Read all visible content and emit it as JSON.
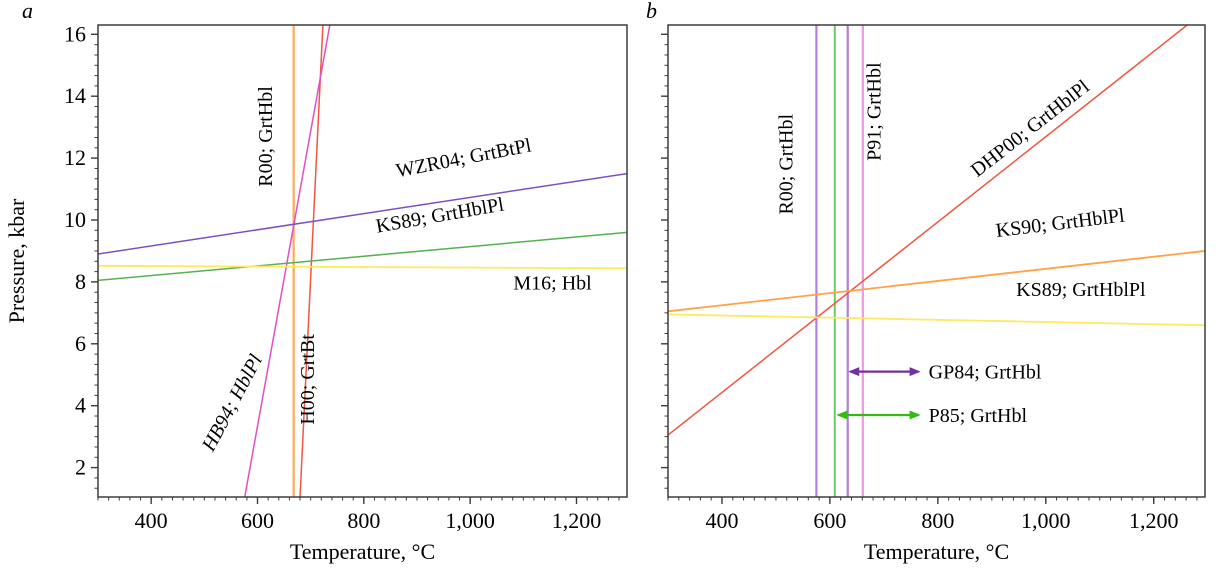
{
  "figure_title": "",
  "chart_data": [
    {
      "type": "line",
      "panel_label": "a",
      "xlabel": "Temperature, °C",
      "ylabel": "Pressure, kbar",
      "xlim": [
        300,
        1295
      ],
      "ylim": [
        1.05,
        16.3
      ],
      "xticks": [
        400,
        600,
        800,
        1000,
        1200
      ],
      "xtick_labels": [
        "400",
        "600",
        "800",
        "1,000",
        "1,200"
      ],
      "x_minor_step": 20,
      "yticks": [
        2,
        4,
        6,
        8,
        10,
        12,
        14,
        16
      ],
      "ytick_labels": [
        "2",
        "4",
        "6",
        "8",
        "10",
        "12",
        "14",
        "16"
      ],
      "y_minor_step": 0.3333,
      "show_y_tick_labels": true,
      "show_ylabel": true,
      "series": [
        {
          "name": "R00; GrtHbl",
          "color": "#ffaa55",
          "width": 2.2,
          "points": [
            [
              668,
              1.05
            ],
            [
              668,
              16.3
            ]
          ]
        },
        {
          "name": "H00; GrtBt",
          "color": "#f25540",
          "width": 1.5,
          "points": [
            [
              680,
              1.05
            ],
            [
              723,
              16.3
            ]
          ]
        },
        {
          "name": "HB94; HblPl",
          "color": "#e34fc3",
          "width": 1.5,
          "points": [
            [
              576,
              1.05
            ],
            [
              736,
              16.3
            ]
          ]
        },
        {
          "name": "WZR04; GrtBtPl",
          "color": "#7c4fc4",
          "width": 1.5,
          "points": [
            [
              300,
              8.9
            ],
            [
              1295,
              11.5
            ]
          ]
        },
        {
          "name": "KS89; GrtHblPl",
          "color": "#53b253",
          "width": 1.5,
          "points": [
            [
              300,
              8.05
            ],
            [
              1295,
              9.6
            ]
          ]
        },
        {
          "name": "M16; Hbl",
          "color": "#ffe95c",
          "width": 1.8,
          "points": [
            [
              300,
              8.52
            ],
            [
              1295,
              8.44
            ]
          ]
        }
      ],
      "line_labels": [
        {
          "text": "R00; GrtHbl",
          "x": 627,
          "y": 12.7,
          "rotate": -90,
          "italic": false
        },
        {
          "text": "WZR04; GrtBtPl",
          "x": 990,
          "y": 11.8,
          "rotate": -11,
          "italic": false
        },
        {
          "text": "KS89; GrtHblPl",
          "x": 945,
          "y": 9.95,
          "rotate": -10,
          "italic": false
        },
        {
          "text": "M16; Hbl",
          "x": 1155,
          "y": 7.75,
          "rotate": 0,
          "italic": false
        },
        {
          "text": "HB94; HblPl",
          "x": 563,
          "y": 4.0,
          "rotate": -62,
          "italic": true
        },
        {
          "text": "H00; GrtBt",
          "x": 706,
          "y": 4.85,
          "rotate": -90,
          "italic": false
        }
      ],
      "range_arrows": []
    },
    {
      "type": "line",
      "panel_label": "b",
      "xlabel": "Temperature, °C",
      "ylabel": "Pressure, kbar",
      "xlim": [
        300,
        1295
      ],
      "ylim": [
        1.05,
        16.3
      ],
      "xticks": [
        400,
        600,
        800,
        1000,
        1200
      ],
      "xtick_labels": [
        "400",
        "600",
        "800",
        "1,000",
        "1,200"
      ],
      "x_minor_step": 20,
      "yticks": [
        2,
        4,
        6,
        8,
        10,
        12,
        14,
        16
      ],
      "ytick_labels": [
        "2",
        "4",
        "6",
        "8",
        "10",
        "12",
        "14",
        "16"
      ],
      "y_minor_step": 0.3333,
      "show_y_tick_labels": false,
      "show_ylabel": false,
      "series": [
        {
          "name": "R00; GrtHbl",
          "color": "#b07fd9",
          "width": 2.2,
          "points": [
            [
              575,
              1.05
            ],
            [
              575,
              16.3
            ]
          ]
        },
        {
          "name": "P85; GrtHbl",
          "color": "#66cc66",
          "width": 2.0,
          "points": [
            [
              609,
              1.05
            ],
            [
              609,
              16.3
            ]
          ]
        },
        {
          "name": "GP84; GrtHbl",
          "color": "#b07fd9",
          "width": 2.2,
          "points": [
            [
              633,
              1.05
            ],
            [
              633,
              16.3
            ]
          ]
        },
        {
          "name": "P91; GrtHbl",
          "color": "#ee99dd",
          "width": 2.2,
          "points": [
            [
              661,
              1.05
            ],
            [
              661,
              16.3
            ]
          ]
        },
        {
          "name": "DHP00; GrtHblPl",
          "color": "#f25540",
          "width": 1.5,
          "points": [
            [
              300,
              3.05
            ],
            [
              1262,
              16.3
            ]
          ]
        },
        {
          "name": "KS90; GrtHblPl",
          "color": "#ffa347",
          "width": 1.8,
          "points": [
            [
              300,
              7.05
            ],
            [
              1295,
              9.0
            ]
          ]
        },
        {
          "name": "KS89; GrtHblPl",
          "color": "#ffe95c",
          "width": 1.8,
          "points": [
            [
              300,
              6.95
            ],
            [
              1295,
              6.6
            ]
          ]
        }
      ],
      "line_labels": [
        {
          "text": "R00; GrtHbl",
          "x": 531,
          "y": 11.8,
          "rotate": -90,
          "italic": false
        },
        {
          "text": "P91; GrtHbl",
          "x": 694,
          "y": 13.5,
          "rotate": -90,
          "italic": false
        },
        {
          "text": "DHP00; GrtHblPl",
          "x": 978,
          "y": 12.8,
          "rotate": -38,
          "italic": false
        },
        {
          "text": "KS90; GrtHblPl",
          "x": 1028,
          "y": 9.7,
          "rotate": -7,
          "italic": false
        },
        {
          "text": "KS89; GrtHblPl",
          "x": 1065,
          "y": 7.55,
          "rotate": 0,
          "italic": false
        }
      ],
      "range_arrows": [
        {
          "label": "GP84; GrtHbl",
          "color": "#7030a0",
          "x1": 634,
          "x2": 768,
          "y": 5.1,
          "label_x": 783
        },
        {
          "label": "P85; GrtHbl",
          "color": "#33bb11",
          "x1": 612,
          "x2": 768,
          "y": 3.7,
          "label_x": 783
        }
      ]
    }
  ],
  "style": {
    "axis_color": "#3d3d3d",
    "tick_color": "#3d3d3d",
    "background": "#ffffff"
  }
}
